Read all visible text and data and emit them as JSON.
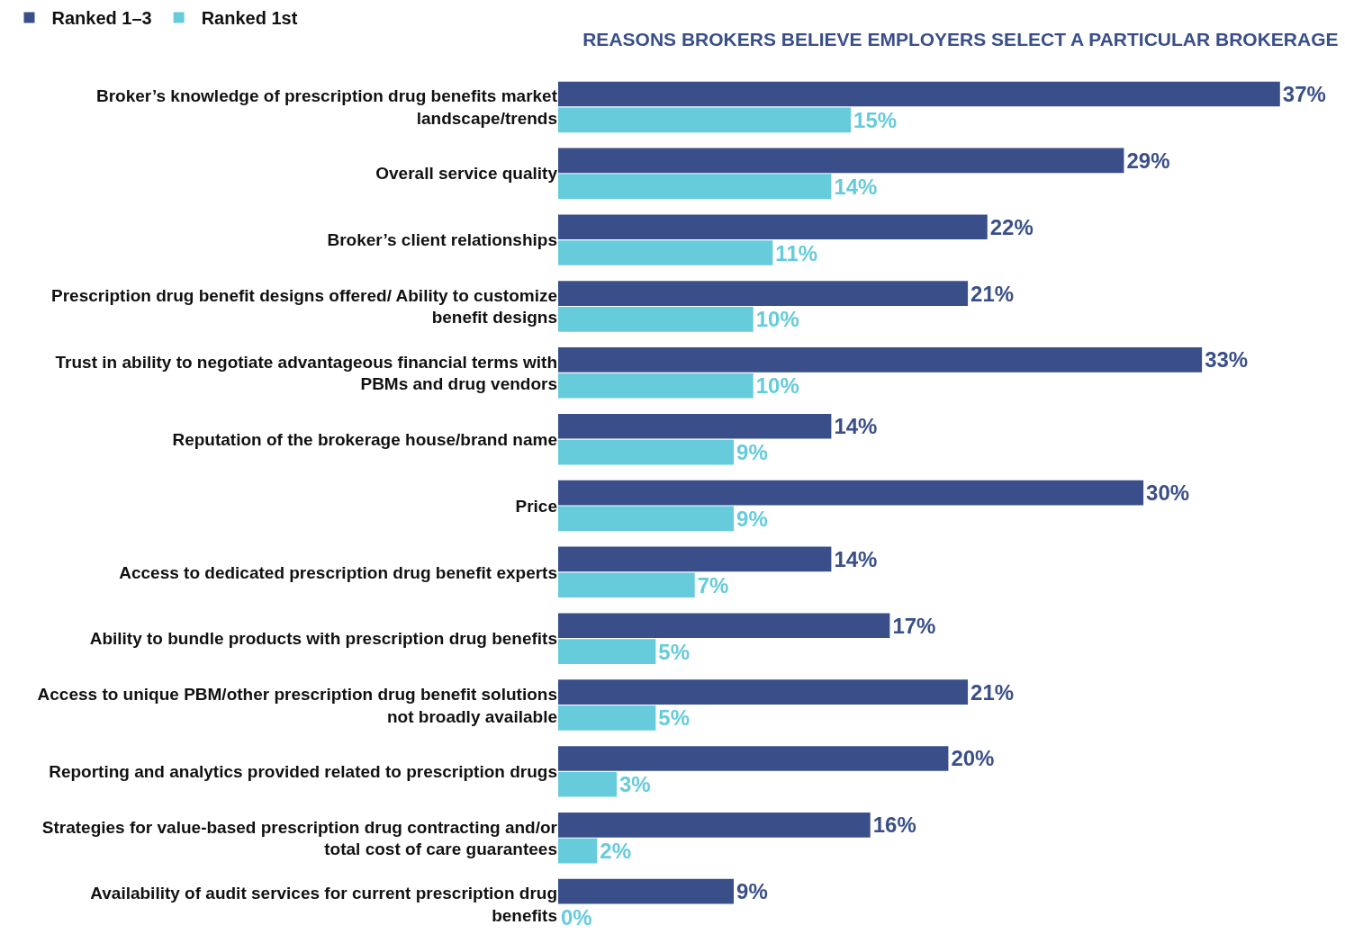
{
  "chart_data": {
    "type": "bar",
    "orientation": "horizontal",
    "title": "REASONS BROKERS BELIEVE EMPLOYERS SELECT A PARTICULAR BROKERAGE",
    "categories": [
      "Broker’s knowledge of prescription drug benefits market landscape/trends",
      "Overall service quality",
      "Broker’s client relationships",
      "Prescription drug benefit designs offered/ Ability to customize benefit designs",
      "Trust in ability to negotiate advantageous financial terms with PBMs and drug vendors",
      "Reputation of the brokerage house/brand name",
      "Price",
      "Access to dedicated prescription drug benefit experts",
      "Ability to bundle products with prescription drug benefits",
      "Access to unique PBM/other prescription drug benefit solutions not broadly available",
      "Reporting and analytics provided related to prescription drugs",
      "Strategies for value-based prescription drug contracting and/or total cost of care guarantees",
      "Availability of audit services for current prescription drug benefits"
    ],
    "series": [
      {
        "name": "Ranked 1–3",
        "color": "#3a4f8a",
        "values": [
          37,
          29,
          22,
          21,
          33,
          14,
          30,
          14,
          17,
          21,
          20,
          16,
          9
        ],
        "value_labels": [
          "37%",
          "29%",
          "22%",
          "21%",
          "33%",
          "14%",
          "30%",
          "14%",
          "17%",
          "21%",
          "20%",
          "16%",
          "9%"
        ]
      },
      {
        "name": "Ranked 1st",
        "color": "#66cbdb",
        "values": [
          15,
          14,
          11,
          10,
          10,
          9,
          9,
          7,
          5,
          5,
          3,
          2,
          0
        ],
        "value_labels": [
          "15%",
          "14%",
          "11%",
          "10%",
          "10%",
          "9%",
          "9%",
          "7%",
          "5%",
          "5%",
          "3%",
          "2%",
          "0%"
        ]
      }
    ],
    "tick_labels": "y",
    "legend": "top left",
    "grid": false
  }
}
